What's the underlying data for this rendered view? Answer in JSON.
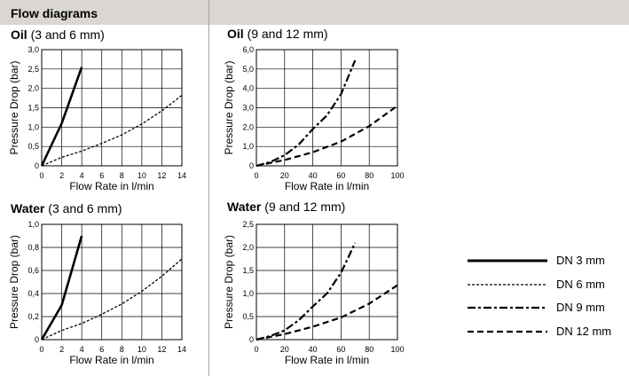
{
  "header": {
    "title": "Flow diagrams"
  },
  "legend": [
    {
      "label": "DN 3 mm",
      "style": "solid"
    },
    {
      "label": "DN 6 mm",
      "style": "dotted"
    },
    {
      "label": "DN 9 mm",
      "style": "dashdot"
    },
    {
      "label": "DN 12 mm",
      "style": "dashed"
    }
  ],
  "chart_data": [
    {
      "type": "line",
      "title_bold": "Oil",
      "title_rest": "(3 and 6 mm)",
      "xlabel": "Flow Rate in l/min",
      "ylabel": "Pressure Drop (bar)",
      "xlim": [
        0,
        14
      ],
      "ylim": [
        0,
        3.0
      ],
      "xticks": [
        "0",
        "2",
        "4",
        "6",
        "8",
        "10",
        "12",
        "14"
      ],
      "yticks": [
        "0",
        "0,5",
        "1,0",
        "1,5",
        "2,0",
        "2,5",
        "3,0"
      ],
      "grid": true,
      "series": [
        {
          "name": "DN 3 mm",
          "style": "solid",
          "x": [
            0,
            2,
            4
          ],
          "y": [
            0,
            1.1,
            2.55
          ]
        },
        {
          "name": "DN 6 mm",
          "style": "dotted",
          "x": [
            0,
            2,
            4,
            6,
            8,
            10,
            12,
            14
          ],
          "y": [
            0,
            0.22,
            0.38,
            0.58,
            0.8,
            1.08,
            1.42,
            1.82
          ]
        }
      ]
    },
    {
      "type": "line",
      "title_bold": "Oil",
      "title_rest": "(9 and 12 mm)",
      "xlabel": "Flow Rate in l/min",
      "ylabel": "Pressure Drop (bar)",
      "xlim": [
        0,
        100
      ],
      "ylim": [
        0,
        6.0
      ],
      "xticks": [
        "0",
        "20",
        "40",
        "60",
        "80",
        "100"
      ],
      "yticks": [
        "0",
        "1,0",
        "2,0",
        "3,0",
        "4,0",
        "5,0",
        "6,0"
      ],
      "grid": true,
      "series": [
        {
          "name": "DN 9 mm",
          "style": "dashdot",
          "x": [
            0,
            10,
            20,
            30,
            40,
            50,
            60,
            70
          ],
          "y": [
            0,
            0.2,
            0.55,
            1.1,
            1.9,
            2.6,
            3.7,
            5.45
          ]
        },
        {
          "name": "DN 12 mm",
          "style": "dashed",
          "x": [
            0,
            20,
            40,
            60,
            80,
            100
          ],
          "y": [
            0,
            0.3,
            0.7,
            1.25,
            2.05,
            3.1
          ]
        }
      ]
    },
    {
      "type": "line",
      "title_bold": "Water",
      "title_rest": "(3 and 6 mm)",
      "xlabel": "Flow Rate in l/min",
      "ylabel": "Pressure Drop (bar)",
      "xlim": [
        0,
        14
      ],
      "ylim": [
        0,
        1.0
      ],
      "xticks": [
        "0",
        "2",
        "4",
        "6",
        "8",
        "10",
        "12",
        "14"
      ],
      "yticks": [
        "0",
        "0,2",
        "0,4",
        "0,6",
        "0,8",
        "1,0"
      ],
      "grid": true,
      "series": [
        {
          "name": "DN 3 mm",
          "style": "solid",
          "x": [
            0,
            2,
            4
          ],
          "y": [
            0,
            0.3,
            0.9
          ]
        },
        {
          "name": "DN 6 mm",
          "style": "dotted",
          "x": [
            0,
            2,
            4,
            6,
            8,
            10,
            12,
            14
          ],
          "y": [
            0,
            0.08,
            0.14,
            0.22,
            0.31,
            0.42,
            0.55,
            0.7
          ]
        }
      ]
    },
    {
      "type": "line",
      "title_bold": "Water",
      "title_rest": "(9 and 12 mm)",
      "xlabel": "Flow Rate in l/min",
      "ylabel": "Pressure Drop (bar)",
      "xlim": [
        0,
        100
      ],
      "ylim": [
        0,
        2.5
      ],
      "xticks": [
        "0",
        "20",
        "40",
        "60",
        "80",
        "100"
      ],
      "yticks": [
        "0",
        "0,5",
        "1,0",
        "1,5",
        "2,0",
        "2,5"
      ],
      "grid": true,
      "series": [
        {
          "name": "DN 9 mm",
          "style": "dashdot",
          "x": [
            0,
            10,
            20,
            30,
            40,
            50,
            60,
            70
          ],
          "y": [
            0,
            0.08,
            0.2,
            0.42,
            0.72,
            1.0,
            1.45,
            2.1
          ]
        },
        {
          "name": "DN 12 mm",
          "style": "dashed",
          "x": [
            0,
            20,
            40,
            60,
            80,
            100
          ],
          "y": [
            0,
            0.12,
            0.28,
            0.48,
            0.78,
            1.18
          ]
        }
      ]
    }
  ]
}
